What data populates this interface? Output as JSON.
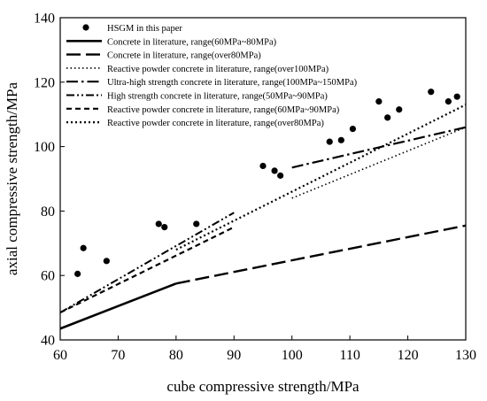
{
  "chart_data": {
    "type": "scatter",
    "xlabel": "cube compressive strength/MPa",
    "ylabel": "axial compressive strength/MPa",
    "xlim": [
      60,
      130
    ],
    "ylim": [
      40,
      140
    ],
    "x_ticks": [
      "60",
      "70",
      "80",
      "90",
      "100",
      "110",
      "120",
      "130"
    ],
    "y_ticks": [
      "40",
      "60",
      "80",
      "100",
      "120",
      "140"
    ],
    "x_tick_values": [
      60,
      70,
      80,
      90,
      100,
      110,
      120,
      130
    ],
    "y_tick_values": [
      40,
      60,
      80,
      100,
      120,
      140
    ],
    "legend_position": "top-left",
    "scatter": {
      "name": "HSGM in this paper",
      "points": [
        [
          63,
          60.5
        ],
        [
          64,
          68.5
        ],
        [
          68,
          64.5
        ],
        [
          77,
          76
        ],
        [
          78,
          75
        ],
        [
          83.5,
          76
        ],
        [
          95,
          94
        ],
        [
          97,
          92.5
        ],
        [
          98,
          91
        ],
        [
          106.5,
          101.5
        ],
        [
          108.5,
          102
        ],
        [
          110.5,
          105.5
        ],
        [
          115,
          114
        ],
        [
          116.5,
          109
        ],
        [
          118.5,
          111.5
        ],
        [
          124,
          117
        ],
        [
          127,
          114
        ],
        [
          128.5,
          115.5
        ]
      ]
    },
    "series": [
      {
        "name": "Concrete in literature, range(60MPa~80MPa)",
        "style": "solid",
        "x": [
          60,
          80
        ],
        "y": [
          43.5,
          57.5
        ]
      },
      {
        "name": "Concrete in literature, range(over80MPa)",
        "style": "longdash",
        "x": [
          80,
          130
        ],
        "y": [
          57.5,
          75.5
        ]
      },
      {
        "name": "Reactive powder concrete in literature, range(over100MPa)",
        "style": "densedot",
        "x": [
          100,
          130
        ],
        "y": [
          84,
          106
        ]
      },
      {
        "name": "Ultra-high strength concrete in literature, range(100MPa~150MPa)",
        "style": "dashdot",
        "x": [
          100,
          130
        ],
        "y": [
          93.5,
          106
        ]
      },
      {
        "name": "High strength concrete in literature, range(50MPa~90MPa)",
        "style": "dashdotdot",
        "x": [
          60,
          90
        ],
        "y": [
          48.5,
          79.5
        ]
      },
      {
        "name": "Reactive powder concrete in literature, range(60MPa~90MPa)",
        "style": "shortdash",
        "x": [
          60,
          90
        ],
        "y": [
          48.5,
          75
        ]
      },
      {
        "name": "Reactive powder concrete in literature, range(over80MPa)",
        "style": "dot",
        "x": [
          80,
          130
        ],
        "y": [
          68,
          113
        ]
      }
    ]
  }
}
